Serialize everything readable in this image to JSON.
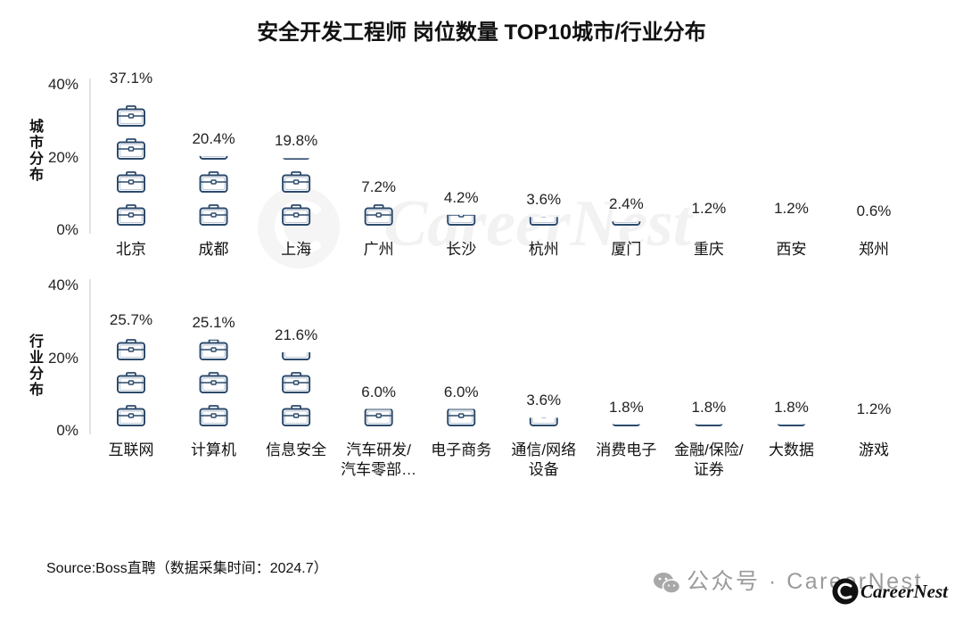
{
  "title": "安全开发工程师 岗位数量 TOP10城市/行业分布",
  "source": "Source:Boss直聘（数据采集时间：2024.7）",
  "watermark": {
    "center_text": "CareerNest",
    "footer_text": "公众号 · CareerNest",
    "logo_text": "CareerNest",
    "center_icon": "careernest-logo-icon",
    "footer_icon": "wechat-icon",
    "logo_icon": "careernest-logo-icon"
  },
  "colors": {
    "icon_stroke": "#2c4a6b",
    "icon_inner": "#a9b8ca",
    "axis": "#c4c4c4",
    "watermark_gray": "#9b9b9b"
  },
  "chart_data": [
    {
      "type": "bar",
      "icon": "briefcase-icon",
      "ylabel": "城市分布",
      "categories": [
        "北京",
        "成都",
        "上海",
        "广州",
        "长沙",
        "杭州",
        "厦门",
        "重庆",
        "西安",
        "郑州"
      ],
      "values": [
        37.1,
        20.4,
        19.8,
        7.2,
        4.2,
        3.6,
        2.4,
        1.2,
        1.2,
        0.6
      ],
      "value_suffix": "%",
      "ylim": [
        0,
        40
      ],
      "yticks": [
        0,
        20,
        40
      ],
      "ytick_labels": [
        "0%",
        "20%",
        "40%"
      ],
      "grid": false
    },
    {
      "type": "bar",
      "icon": "briefcase-icon",
      "ylabel": "行业分布",
      "categories": [
        "互联网",
        "计算机",
        "信息安全",
        "汽车研发/\n汽车零部…",
        "电子商务",
        "通信/网络\n设备",
        "消费电子",
        "金融/保险/\n证券",
        "大数据",
        "游戏"
      ],
      "values": [
        25.7,
        25.1,
        21.6,
        6.0,
        6.0,
        3.6,
        1.8,
        1.8,
        1.8,
        1.2
      ],
      "value_suffix": "%",
      "ylim": [
        0,
        40
      ],
      "yticks": [
        0,
        20,
        40
      ],
      "ytick_labels": [
        "0%",
        "20%",
        "40%"
      ],
      "grid": false
    }
  ]
}
